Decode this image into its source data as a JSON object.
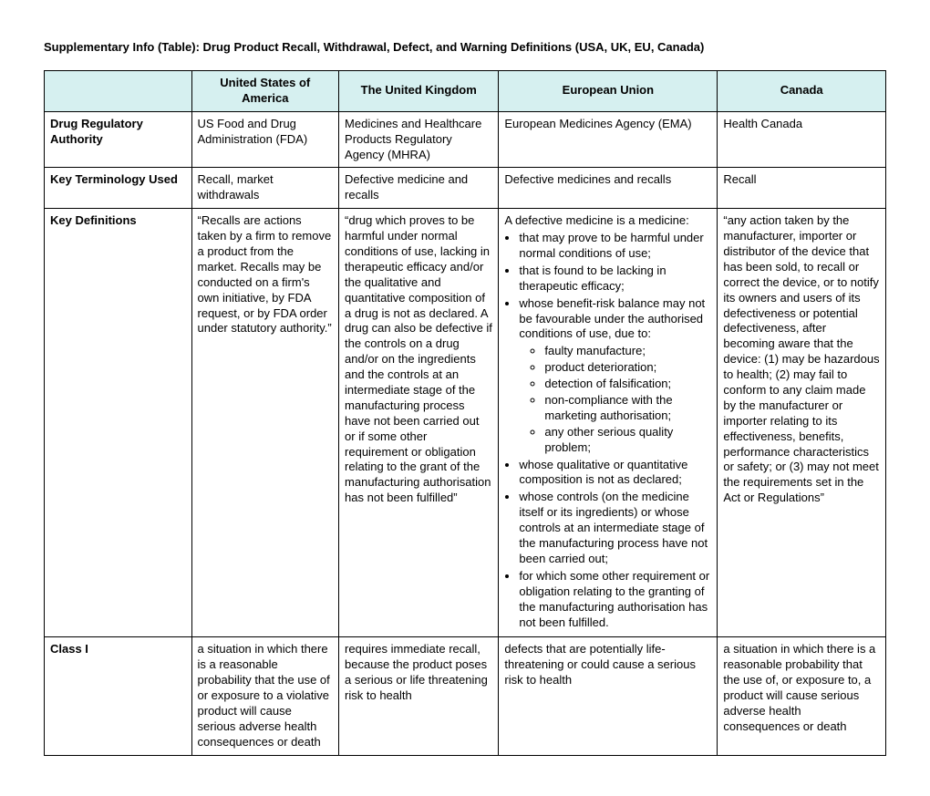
{
  "title": "Supplementary Info (Table):  Drug Product Recall, Withdrawal, Defect, and Warning Definitions (USA, UK, EU, Canada)",
  "colors": {
    "header_bg": "#d6f0f0",
    "border": "#000000",
    "text": "#000000",
    "page_bg": "#ffffff"
  },
  "columns": {
    "corner": "",
    "usa": "United States of America",
    "uk": "The United Kingdom",
    "eu": "European Union",
    "canada": "Canada"
  },
  "rows": {
    "authority": {
      "label": "Drug Regulatory Authority",
      "usa": "US Food and Drug Administration (FDA)",
      "uk": "Medicines and Healthcare Products Regulatory Agency (MHRA)",
      "eu": "European Medicines Agency (EMA)",
      "canada": "Health Canada"
    },
    "terminology": {
      "label": "Key Terminology Used",
      "usa": "Recall, market withdrawals",
      "uk": "Defective medicine and recalls",
      "eu": "Defective medicines and recalls",
      "canada": "Recall"
    },
    "definitions": {
      "label": "Key Definitions",
      "usa": "“Recalls are actions taken by a firm to remove a product from the market. Recalls may be conducted on a firm's own initiative, by FDA request, or by FDA order under statutory authority.”",
      "uk": "“drug which proves to be harmful under normal conditions of use, lacking in therapeutic efficacy and/or the qualitative and quantitative composition of a drug is not as declared. A drug can also be defective if the controls on a drug and/or on the ingredients and the controls at an intermediate stage of the manufacturing process have not been carried out or if some other requirement or obligation relating to the grant of the manufacturing authorisation has not been fulfilled”",
      "eu_intro": "A defective medicine is a medicine:",
      "eu_items": {
        "i0": "that may prove to be harmful under normal conditions of use;",
        "i1": "that is found to be lacking in therapeutic efficacy;",
        "i2": "whose benefit-risk balance may not be favourable under the authorised conditions of use, due to:",
        "i2sub": {
          "s0": "faulty manufacture;",
          "s1": "product deterioration;",
          "s2": "detection of falsification;",
          "s3": "non-compliance with the marketing authorisation;",
          "s4": "any other serious quality problem;"
        },
        "i3": "whose qualitative or quantitative composition is not as declared;",
        "i4": "whose controls (on the medicine itself or its ingredients) or whose controls at an intermediate stage of the manufacturing process have not been carried out;",
        "i5": "for which some other requirement or obligation relating to the granting of the manufacturing authorisation has not been fulfilled."
      },
      "canada": "“any action taken by the manufacturer, importer or distributor of the device that has been sold, to recall or correct the device, or to notify its owners and users of its defectiveness or potential defectiveness, after becoming aware that the device: (1) may be hazardous to health; (2) may fail to conform to any claim made by the manufacturer or importer relating to its effectiveness, benefits, performance characteristics or safety; or (3) may not meet the requirements set in the Act or Regulations”"
    },
    "class1": {
      "label": "Class I",
      "usa": "a situation in which there is a reasonable probability that the use of or exposure to a violative product will cause serious adverse health consequences or death",
      "uk": "requires immediate\nrecall, because the product poses a serious or life threatening risk\nto health",
      "eu": "defects that are potentially life-threatening or could cause a serious risk to health",
      "canada": "a situation in which there is a reasonable probability that the use of, or exposure to, a product will cause serious adverse health consequences or death"
    }
  }
}
